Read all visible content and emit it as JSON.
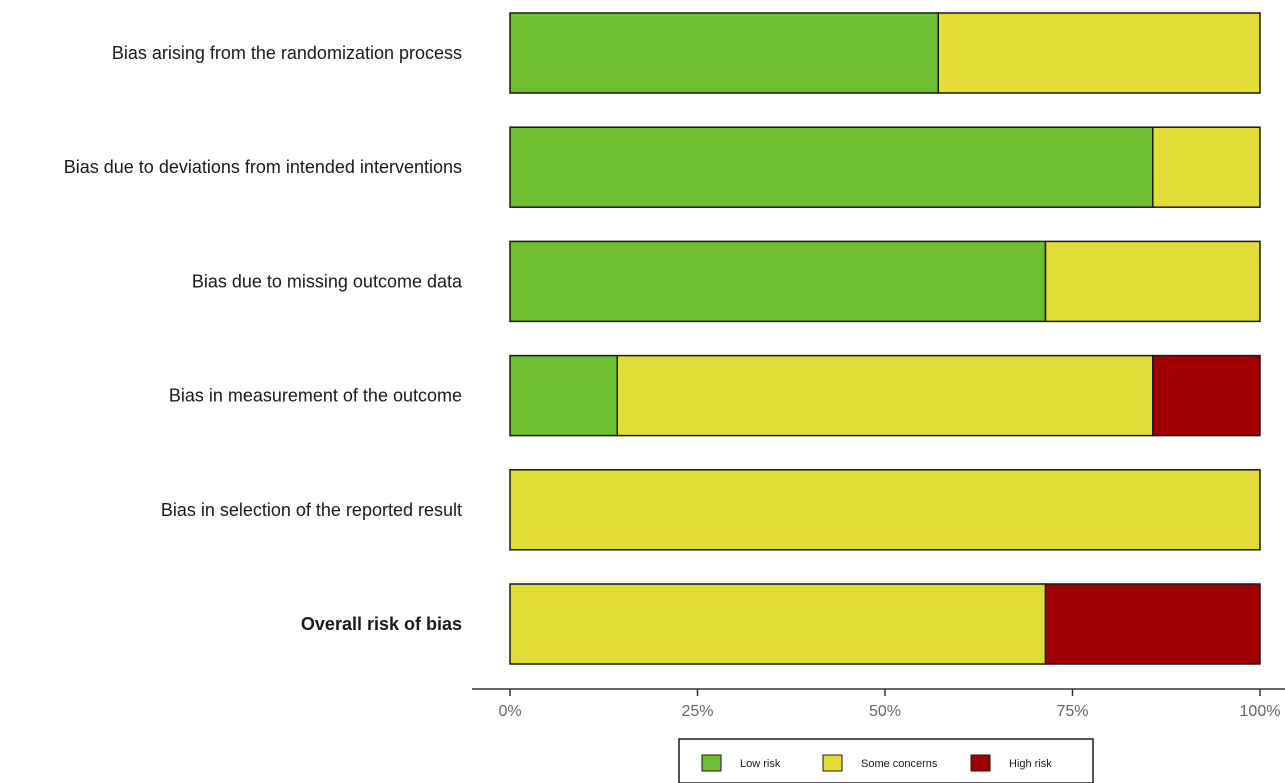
{
  "chart_data": {
    "type": "bar",
    "orientation": "horizontal",
    "stacked": true,
    "categories": [
      "Bias arising from the randomization process",
      "Bias due to deviations from intended interventions",
      "Bias due to missing outcome data",
      "Bias in measurement of the outcome",
      "Bias in selection of the reported result",
      "Overall risk of bias"
    ],
    "bold_categories": [
      "Overall risk of bias"
    ],
    "series": [
      {
        "name": "Low risk",
        "color": "#6fbe31",
        "values": [
          57.1,
          85.7,
          71.4,
          14.3,
          0,
          0
        ]
      },
      {
        "name": "Some concerns",
        "color": "#e1dc37",
        "values": [
          42.9,
          14.3,
          28.6,
          71.4,
          100,
          71.4
        ]
      },
      {
        "name": "High risk",
        "color": "#a10000",
        "values": [
          0,
          0,
          0,
          14.3,
          0,
          28.6
        ]
      }
    ],
    "xlim": [
      0,
      100
    ],
    "x_ticks": [
      "0%",
      "25%",
      "50%",
      "75%",
      "100%"
    ],
    "title": "",
    "xlabel": "",
    "ylabel": "",
    "grid": false,
    "legend": "bottom"
  }
}
